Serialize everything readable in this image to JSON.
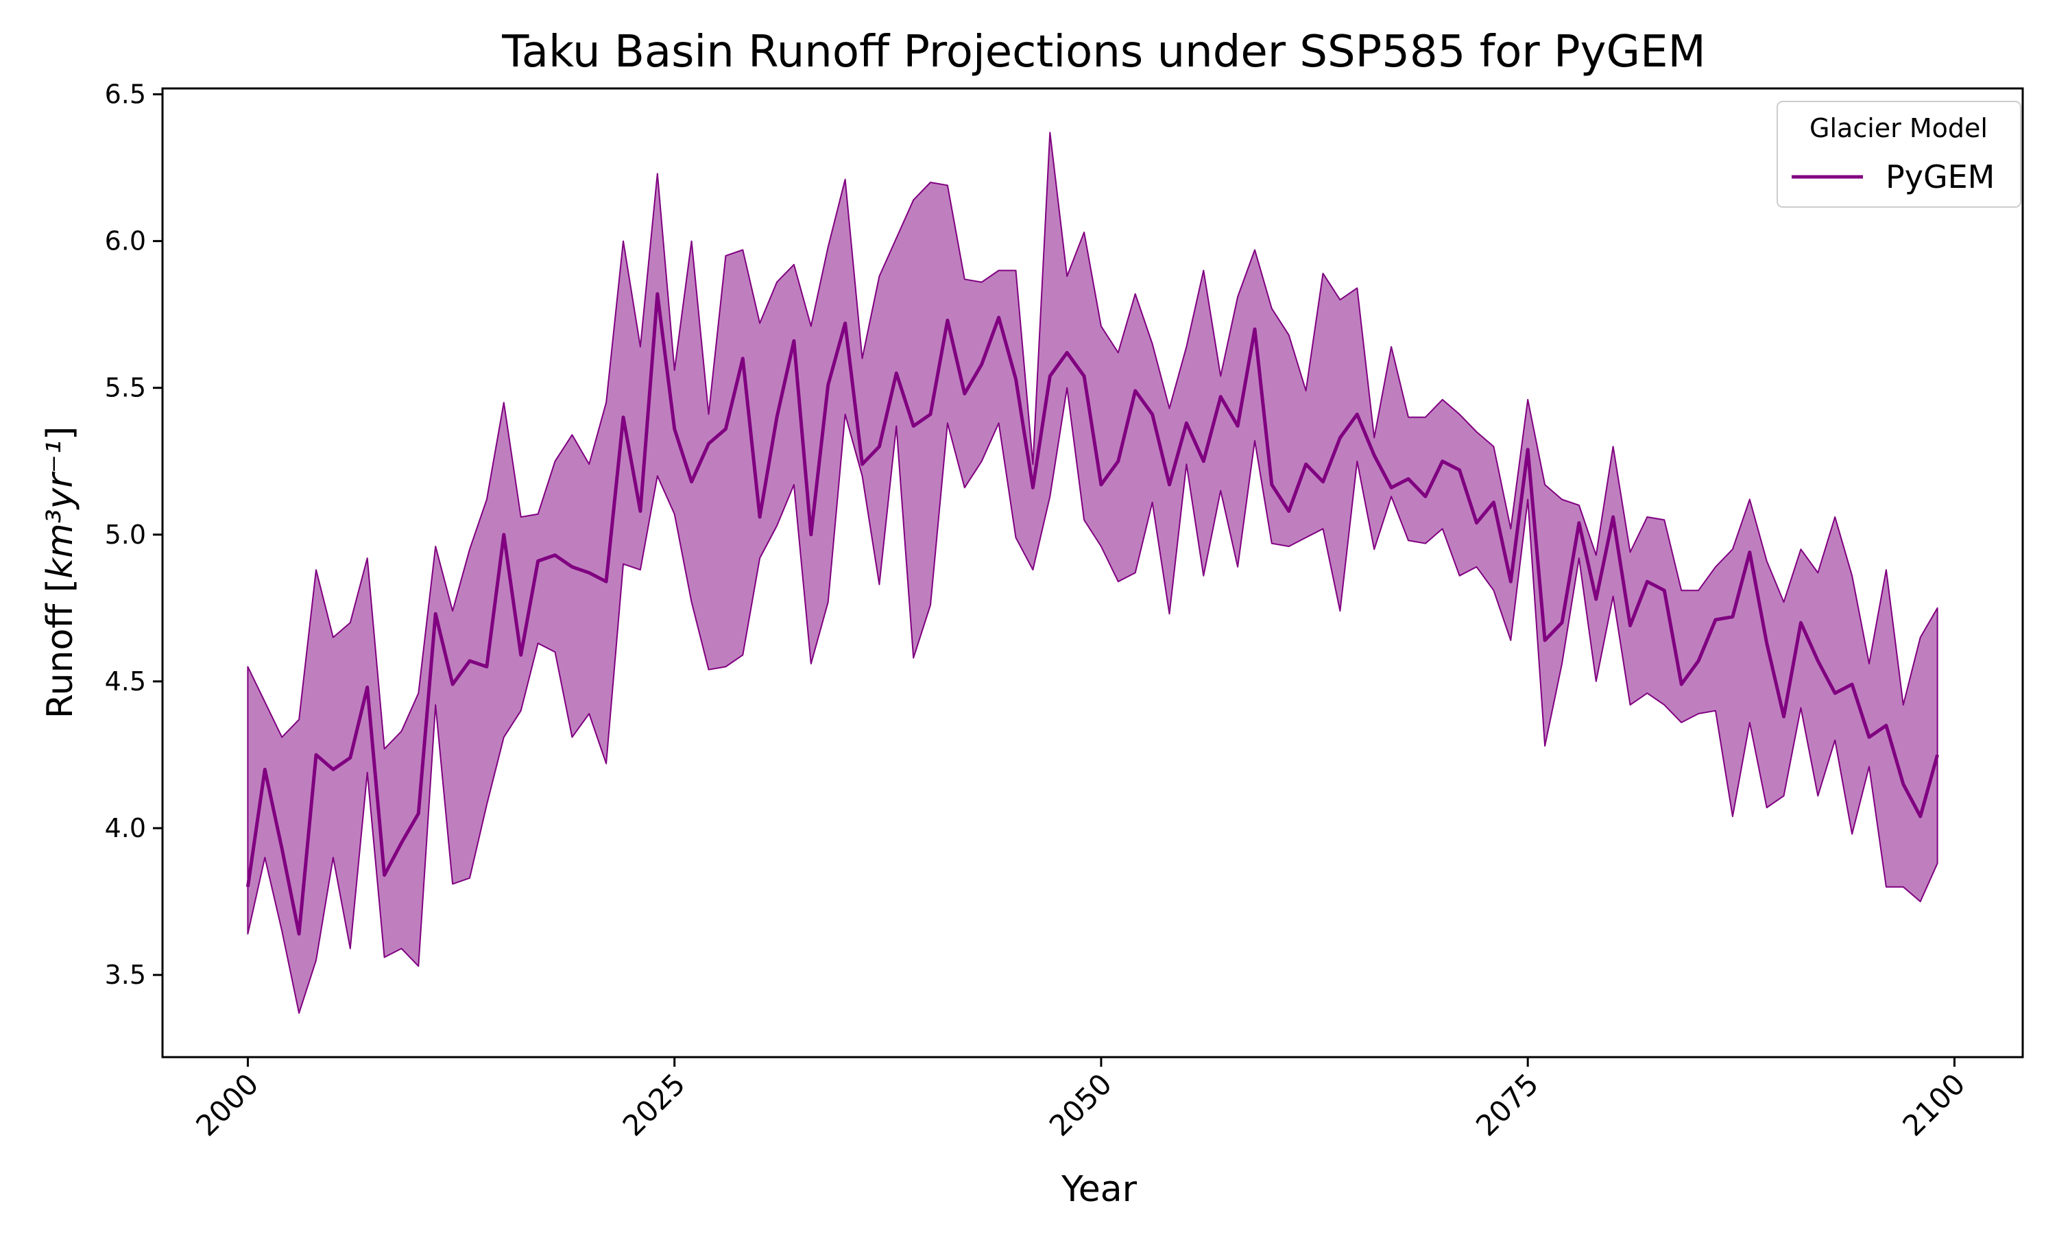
{
  "chart_data": {
    "type": "line",
    "title": "Taku Basin Runoff Projections under SSP585 for PyGEM",
    "xlabel": "Year",
    "ylabel_base": "Runoff [",
    "ylabel_unit": "km³yr⁻¹",
    "ylabel_end": "]",
    "xlim": [
      1995,
      2104
    ],
    "ylim": [
      3.22,
      6.52
    ],
    "xticks": [
      2000,
      2025,
      2050,
      2075,
      2100
    ],
    "yticks": [
      3.5,
      4.0,
      4.5,
      5.0,
      5.5,
      6.0,
      6.5
    ],
    "ytick_labels": [
      "3.5",
      "4.0",
      "4.5",
      "5.0",
      "5.5",
      "6.0",
      "6.5"
    ],
    "legend": {
      "title": "Glacier Model",
      "position": "top-right",
      "entries": [
        "PyGEM"
      ]
    },
    "colors": {
      "line": "#800080",
      "band": "#bf7fbf"
    },
    "x": [
      2000,
      2001,
      2002,
      2003,
      2004,
      2005,
      2006,
      2007,
      2008,
      2009,
      2010,
      2011,
      2012,
      2013,
      2014,
      2015,
      2016,
      2017,
      2018,
      2019,
      2020,
      2021,
      2022,
      2023,
      2024,
      2025,
      2026,
      2027,
      2028,
      2029,
      2030,
      2031,
      2032,
      2033,
      2034,
      2035,
      2036,
      2037,
      2038,
      2039,
      2040,
      2041,
      2042,
      2043,
      2044,
      2045,
      2046,
      2047,
      2048,
      2049,
      2050,
      2051,
      2052,
      2053,
      2054,
      2055,
      2056,
      2057,
      2058,
      2059,
      2060,
      2061,
      2062,
      2063,
      2064,
      2065,
      2066,
      2067,
      2068,
      2069,
      2070,
      2071,
      2072,
      2073,
      2074,
      2075,
      2076,
      2077,
      2078,
      2079,
      2080,
      2081,
      2082,
      2083,
      2084,
      2085,
      2086,
      2087,
      2088,
      2089,
      2090,
      2091,
      2092,
      2093,
      2094,
      2095,
      2096,
      2097,
      2098,
      2099
    ],
    "series": [
      {
        "name": "PyGEM",
        "mean": [
          3.8,
          4.2,
          3.93,
          3.64,
          4.25,
          4.2,
          4.24,
          4.48,
          3.84,
          3.95,
          4.05,
          4.73,
          4.49,
          4.57,
          4.55,
          5.0,
          4.59,
          4.91,
          4.93,
          4.89,
          4.87,
          4.84,
          5.4,
          5.08,
          5.82,
          5.36,
          5.18,
          5.31,
          5.36,
          5.6,
          5.06,
          5.4,
          5.66,
          5.0,
          5.51,
          5.72,
          5.24,
          5.3,
          5.55,
          5.37,
          5.41,
          5.73,
          5.48,
          5.58,
          5.74,
          5.53,
          5.16,
          5.54,
          5.62,
          5.54,
          5.17,
          5.25,
          5.49,
          5.41,
          5.17,
          5.38,
          5.25,
          5.47,
          5.37,
          5.7,
          5.17,
          5.08,
          5.24,
          5.18,
          5.33,
          5.41,
          5.27,
          5.16,
          5.19,
          5.13,
          5.25,
          5.22,
          5.04,
          5.11,
          4.84,
          5.29,
          4.64,
          4.7,
          5.04,
          4.78,
          5.06,
          4.69,
          4.84,
          4.81,
          4.49,
          4.57,
          4.71,
          4.72,
          4.94,
          4.63,
          4.38,
          4.7,
          4.57,
          4.46,
          4.49,
          4.31,
          4.35,
          4.15,
          4.04,
          4.25
        ],
        "upper": [
          4.55,
          4.43,
          4.31,
          4.37,
          4.88,
          4.65,
          4.7,
          4.92,
          4.27,
          4.33,
          4.46,
          4.96,
          4.74,
          4.95,
          5.12,
          5.45,
          5.06,
          5.07,
          5.25,
          5.34,
          5.24,
          5.45,
          6.0,
          5.64,
          6.23,
          5.56,
          6.0,
          5.41,
          5.95,
          5.97,
          5.72,
          5.86,
          5.92,
          5.71,
          5.98,
          6.21,
          5.6,
          5.88,
          6.01,
          6.14,
          6.2,
          6.19,
          5.87,
          5.86,
          5.9,
          5.9,
          5.24,
          6.37,
          5.88,
          6.03,
          5.71,
          5.62,
          5.82,
          5.65,
          5.43,
          5.64,
          5.9,
          5.54,
          5.81,
          5.97,
          5.77,
          5.68,
          5.49,
          5.89,
          5.8,
          5.84,
          5.33,
          5.64,
          5.4,
          5.4,
          5.46,
          5.41,
          5.35,
          5.3,
          5.02,
          5.46,
          5.17,
          5.12,
          5.1,
          4.93,
          5.3,
          4.94,
          5.06,
          5.05,
          4.81,
          4.81,
          4.89,
          4.95,
          5.12,
          4.91,
          4.77,
          4.95,
          4.87,
          5.06,
          4.86,
          4.56,
          4.88,
          4.42,
          4.65,
          4.75
        ],
        "lower": [
          3.64,
          3.9,
          3.65,
          3.37,
          3.55,
          3.9,
          3.59,
          4.19,
          3.56,
          3.59,
          3.53,
          4.42,
          3.81,
          3.83,
          4.08,
          4.31,
          4.4,
          4.63,
          4.6,
          4.31,
          4.39,
          4.22,
          4.9,
          4.88,
          5.2,
          5.07,
          4.77,
          4.54,
          4.55,
          4.59,
          4.92,
          5.03,
          5.17,
          4.56,
          4.77,
          5.41,
          5.2,
          4.83,
          5.37,
          4.58,
          4.76,
          5.38,
          5.16,
          5.25,
          5.38,
          4.99,
          4.88,
          5.13,
          5.5,
          5.05,
          4.96,
          4.84,
          4.87,
          5.11,
          4.73,
          5.24,
          4.86,
          5.15,
          4.89,
          5.32,
          4.97,
          4.96,
          4.99,
          5.02,
          4.74,
          5.25,
          4.95,
          5.13,
          4.98,
          4.97,
          5.02,
          4.86,
          4.89,
          4.81,
          4.64,
          5.12,
          4.28,
          4.56,
          4.92,
          4.5,
          4.79,
          4.42,
          4.46,
          4.42,
          4.36,
          4.39,
          4.4,
          4.04,
          4.36,
          4.07,
          4.11,
          4.41,
          4.11,
          4.3,
          3.98,
          4.21,
          3.8,
          3.8,
          3.75,
          3.88
        ]
      }
    ]
  }
}
